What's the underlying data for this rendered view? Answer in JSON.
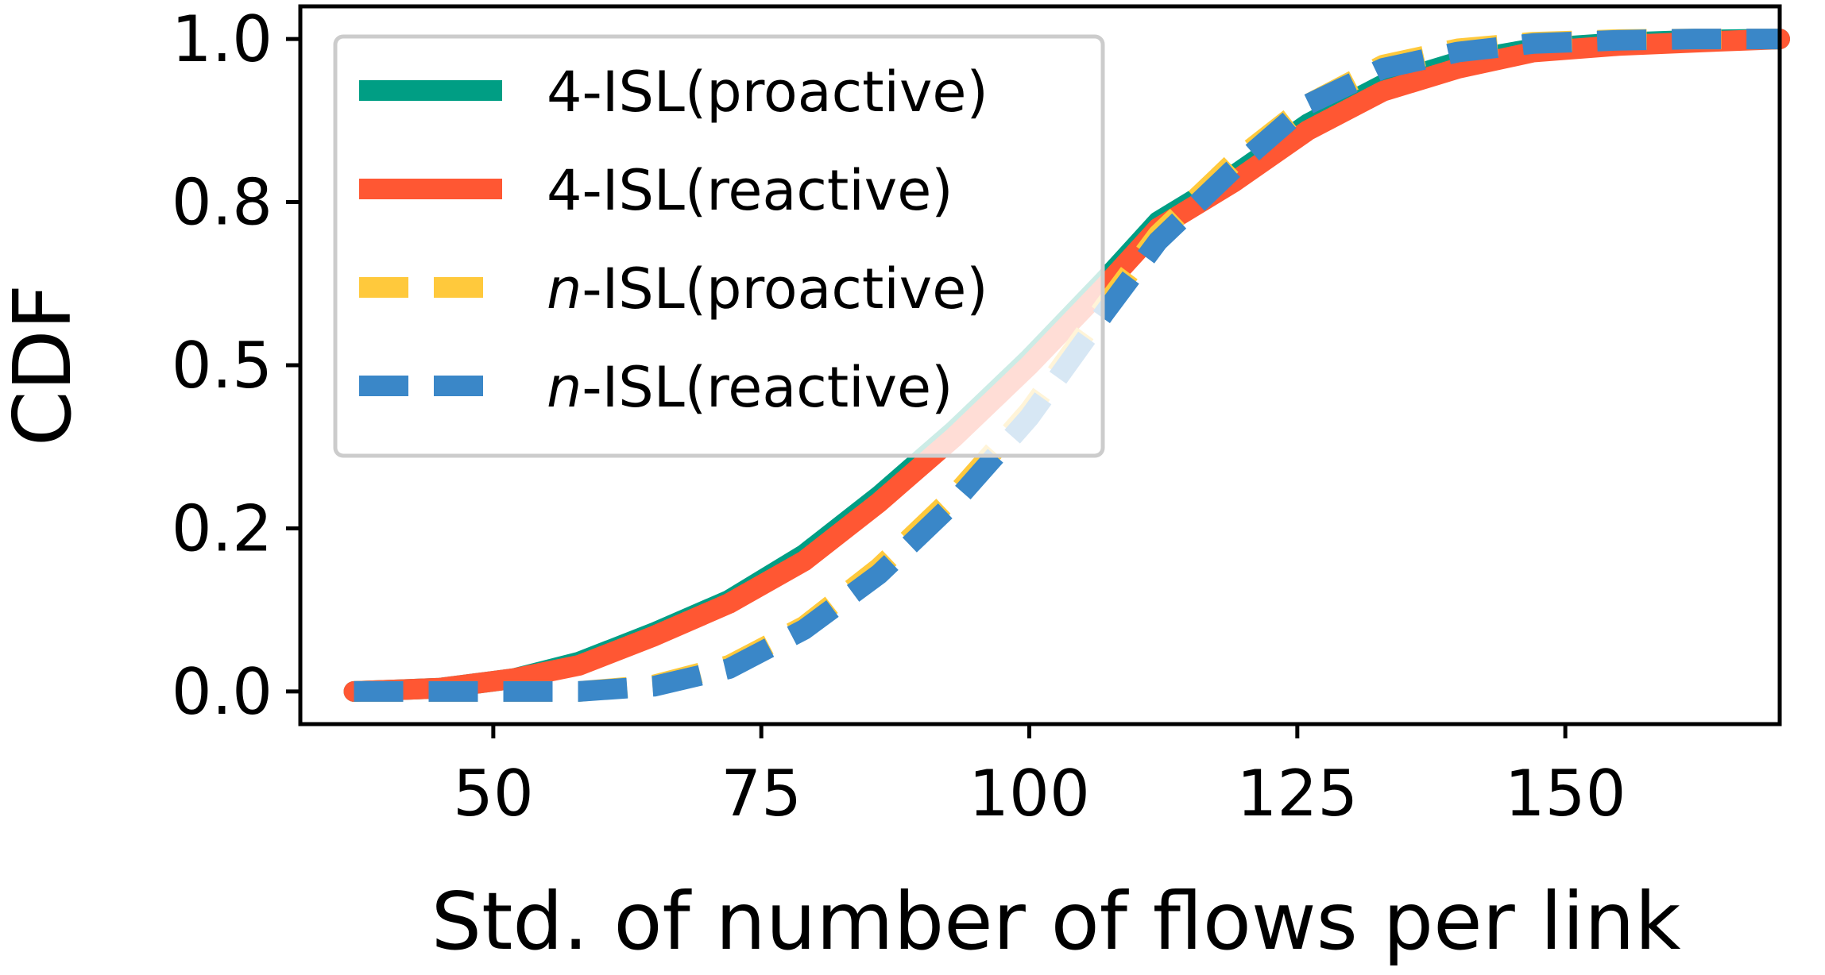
{
  "chart_data": {
    "type": "line",
    "xlabel": "Std. of number of flows per link",
    "ylabel": "CDF",
    "xlim": [
      32,
      170
    ],
    "ylim": [
      -0.05,
      1.05
    ],
    "xticks": [
      50,
      75,
      100,
      125,
      150
    ],
    "xtick_labels": [
      "50",
      "75",
      "100",
      "125",
      "150"
    ],
    "yticks": [
      0.0,
      0.25,
      0.5,
      0.75,
      1.0
    ],
    "ytick_labels": [
      "0.0",
      "0.2",
      "0.5",
      "0.8",
      "1.0"
    ],
    "grid": false,
    "legend_position": "top-left",
    "series": [
      {
        "name": "4-ISL(proactive)",
        "name_prefix": "4",
        "name_suffix": "-ISL(proactive)",
        "color": "#009E84",
        "style": "solid",
        "x": [
          37,
          45,
          52,
          58,
          65,
          72,
          79,
          86,
          93,
          100,
          107,
          112,
          119,
          126,
          133,
          140,
          147,
          155,
          162,
          170
        ],
        "y": [
          0.0,
          0.005,
          0.02,
          0.045,
          0.09,
          0.14,
          0.21,
          0.3,
          0.4,
          0.51,
          0.63,
          0.72,
          0.79,
          0.87,
          0.93,
          0.965,
          0.985,
          0.994,
          0.998,
          1.0
        ]
      },
      {
        "name": "4-ISL(reactive)",
        "name_prefix": "4",
        "name_suffix": "-ISL(reactive)",
        "color": "#FF5733",
        "style": "solid",
        "x": [
          37,
          45,
          52,
          58,
          65,
          72,
          79,
          86,
          93,
          100,
          107,
          112,
          119,
          126,
          133,
          140,
          147,
          155,
          162,
          170
        ],
        "y": [
          0.0,
          0.005,
          0.02,
          0.04,
          0.085,
          0.135,
          0.2,
          0.29,
          0.39,
          0.5,
          0.62,
          0.71,
          0.78,
          0.86,
          0.92,
          0.955,
          0.98,
          0.99,
          0.995,
          1.0
        ]
      },
      {
        "name": "n-ISL(proactive)",
        "name_prefix": "n",
        "name_suffix": "-ISL(proactive)",
        "color": "#FFC93C",
        "style": "dashed",
        "x": [
          37,
          45,
          52,
          58,
          65,
          72,
          79,
          86,
          93,
          100,
          107,
          112,
          119,
          126,
          133,
          140,
          147,
          155,
          162,
          170
        ],
        "y": [
          0.0,
          0.0,
          0.0,
          0.0,
          0.01,
          0.04,
          0.1,
          0.19,
          0.3,
          0.43,
          0.59,
          0.7,
          0.81,
          0.9,
          0.96,
          0.985,
          0.995,
          0.999,
          1.0,
          1.0
        ]
      },
      {
        "name": "n-ISL(reactive)",
        "name_prefix": "n",
        "name_suffix": "-ISL(reactive)",
        "color": "#3A87C8",
        "style": "dashed",
        "x": [
          37,
          45,
          52,
          58,
          65,
          72,
          79,
          86,
          93,
          100,
          107,
          112,
          119,
          126,
          133,
          140,
          147,
          155,
          162,
          170
        ],
        "y": [
          0.0,
          0.0,
          0.0,
          0.0,
          0.008,
          0.035,
          0.095,
          0.18,
          0.29,
          0.42,
          0.58,
          0.69,
          0.8,
          0.9,
          0.955,
          0.98,
          0.993,
          0.998,
          1.0,
          1.0
        ]
      }
    ]
  }
}
